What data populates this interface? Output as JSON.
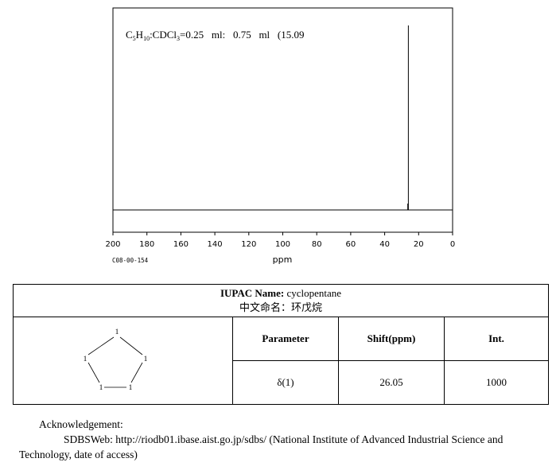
{
  "chart_data": {
    "type": "line",
    "title_parts": {
      "formula_c": "C",
      "formula_c_sub": "5",
      "formula_h": "H",
      "formula_h_sub": "10",
      "solvent_head": ":CDCl",
      "solvent_sub": "3",
      "rest": "=0.25   ml:   0.75   ml   (15.09"
    },
    "xlabel": "ppm",
    "xlim": [
      200,
      0
    ],
    "x_reversed": true,
    "x_ticks": [
      "200",
      "180",
      "160",
      "140",
      "120",
      "100",
      "80",
      "60",
      "40",
      "20",
      "0"
    ],
    "code": "C08-00-154",
    "peaks": [
      {
        "shift": 26.05,
        "intensity": 1000
      }
    ],
    "grid": false
  },
  "compound": {
    "iupac_label": "IUPAC Name:",
    "iupac_name": "cyclopentane",
    "chinese_name": "中文命名：环戊烷",
    "atom_label": "1"
  },
  "table": {
    "headers": [
      "Parameter",
      "Shift(ppm)",
      "Int."
    ],
    "rows": [
      [
        "δ(1)",
        "26.05",
        "1000"
      ]
    ]
  },
  "acknowledgement": {
    "title": "Acknowledgement:",
    "line1": "SDBSWeb: http://riodb01.ibase.aist.go.jp/sdbs/ (National Institute of Advanced Industrial Science and",
    "line2": "Technology, date of access)"
  }
}
